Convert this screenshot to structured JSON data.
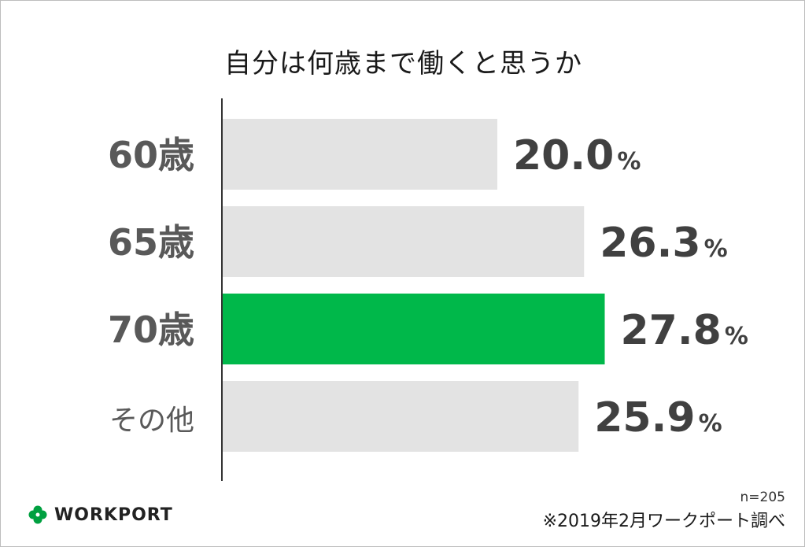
{
  "chart_data": {
    "type": "bar",
    "orientation": "horizontal",
    "title": "自分は何歳まで働くと思うか",
    "categories": [
      "60歳",
      "65歳",
      "70歳",
      "その他"
    ],
    "values": [
      20.0,
      26.3,
      27.8,
      25.9
    ],
    "value_labels": [
      "20.0",
      "26.3",
      "27.8",
      "25.9"
    ],
    "unit": "%",
    "highlight_category": "70歳",
    "grid": false,
    "legend": "none"
  },
  "colors": {
    "bar_default": "#e3e3e3",
    "bar_highlight": "#00b84a",
    "axis": "#333333"
  },
  "footer": {
    "sample": "n=205",
    "source": "※2019年2月ワークポート調べ",
    "brand": "WORKPORT",
    "logo_icon": "clover-icon"
  }
}
